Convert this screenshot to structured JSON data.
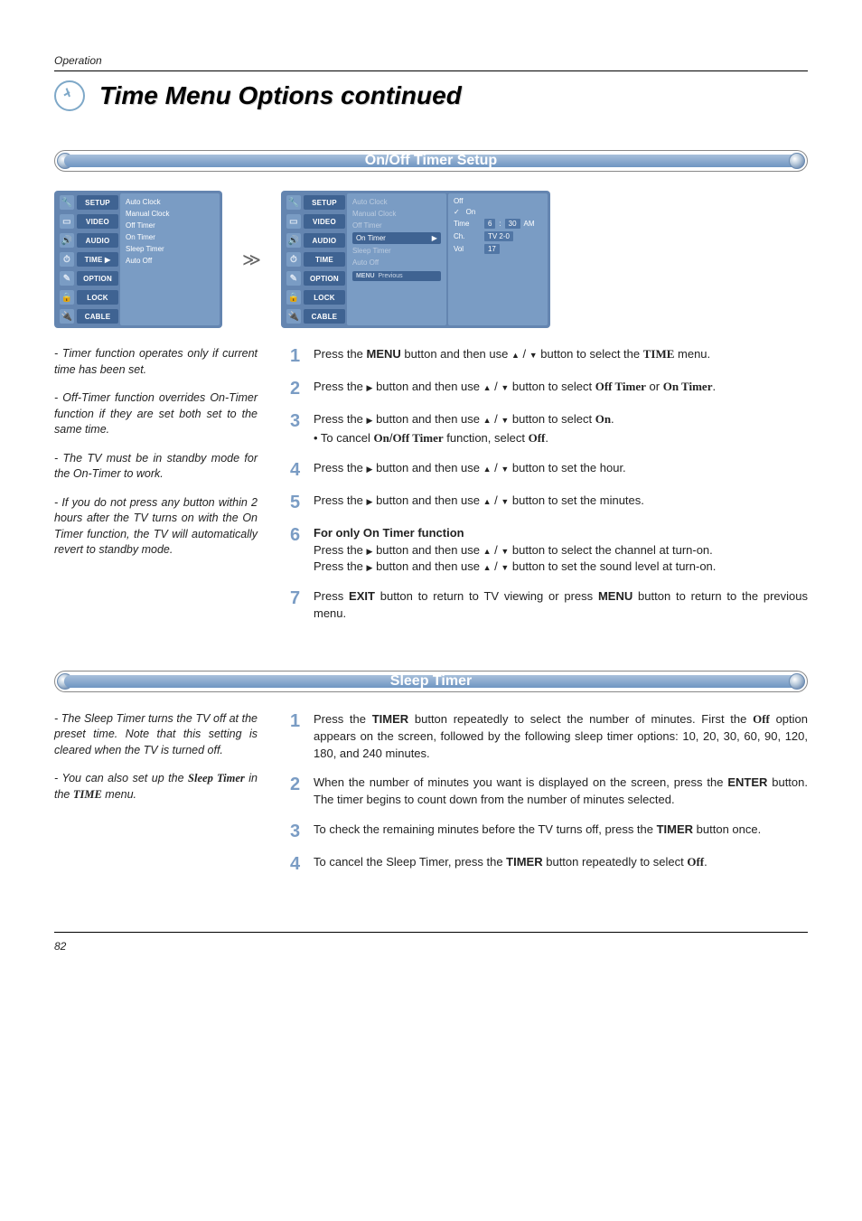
{
  "header": {
    "operation": "Operation",
    "page_number": "82"
  },
  "title": "Time Menu Options continued",
  "colors": {
    "accent_blue": "#7a9cc4",
    "dark_blue": "#3f6392",
    "banner_light": "#a8c0db",
    "banner_dark": "#6f95c2",
    "text": "#222222"
  },
  "section1": {
    "banner": "On/Off Timer Setup",
    "menu_left": {
      "sidebar": [
        {
          "label": "SETUP",
          "icon": "🔧"
        },
        {
          "label": "VIDEO",
          "icon": "▭"
        },
        {
          "label": "AUDIO",
          "icon": "🔊"
        },
        {
          "label": "TIME ▶",
          "icon": "⏱",
          "active": true
        },
        {
          "label": "OPTION",
          "icon": "✎"
        },
        {
          "label": "LOCK",
          "icon": "🔒"
        },
        {
          "label": "CABLE",
          "icon": "🔌"
        }
      ],
      "panel": [
        "Auto Clock",
        "Manual Clock",
        "Off Timer",
        "On Timer",
        "Sleep Timer",
        "Auto Off"
      ]
    },
    "menu_right": {
      "sidebar": [
        {
          "label": "SETUP",
          "icon": "🔧"
        },
        {
          "label": "VIDEO",
          "icon": "▭"
        },
        {
          "label": "AUDIO",
          "icon": "🔊"
        },
        {
          "label": "TIME",
          "icon": "⏱"
        },
        {
          "label": "OPTION",
          "icon": "✎"
        },
        {
          "label": "LOCK",
          "icon": "🔒"
        },
        {
          "label": "CABLE",
          "icon": "🔌"
        }
      ],
      "panel_top": [
        "Auto Clock",
        "Manual Clock",
        "Off Timer"
      ],
      "highlight": "On Timer",
      "panel_rest": [
        "Sleep Timer",
        "Auto Off"
      ],
      "hint1": "MENU",
      "hint2": "Previous",
      "sub": {
        "off": "Off",
        "on": "On",
        "rows": [
          {
            "k": "Time",
            "v1": "6",
            "sep": ":",
            "v2": "30",
            "suffix": "AM"
          },
          {
            "k": "Ch.",
            "v1": "TV  2-0"
          },
          {
            "k": "Vol",
            "v1": "17"
          }
        ]
      }
    },
    "notes": [
      "Timer function operates only if current time has been set.",
      "Off-Timer function overrides On-Timer function if they are set both set to the same time.",
      "The TV must be in standby mode for the On-Timer to work.",
      "If you do not press any button within 2 hours after the TV turns on with the On Timer function, the TV will automatically revert to standby mode."
    ],
    "steps": {
      "s1a": "Press the ",
      "s1b": "MENU",
      "s1c": " button and then use ",
      "s1d": " button to select the ",
      "s1e": "TIME",
      "s1f": " menu.",
      "s2a": "Press the ",
      "s2b": " button and then use ",
      "s2c": " button to select ",
      "s2d": "Off Timer",
      "s2e": " or ",
      "s2f": "On Timer",
      "s2g": ".",
      "s3a": "Press the ",
      "s3b": " button and then use ",
      "s3c": " button to select ",
      "s3d": "On",
      "s3e": ".",
      "s3sub_a": "• To cancel ",
      "s3sub_b": "On",
      "s3sub_c": "/",
      "s3sub_d": "Off Timer",
      "s3sub_e": " function, select ",
      "s3sub_f": "Off",
      "s3sub_g": ".",
      "s4a": "Press the ",
      "s4b": " button and then use ",
      "s4c": " button to set the hour.",
      "s5a": "Press the ",
      "s5b": " button and then use ",
      "s5c": " button to set the minutes.",
      "s6h_a": "For only ",
      "s6h_b": "On Timer",
      "s6h_c": " function",
      "s6a": "Press the ",
      "s6b": " button and then use ",
      "s6c": " button to select the channel at turn-on.",
      "s6d": "Press the ",
      "s6e": " button and then use ",
      "s6f": " button to set the sound level at turn-on.",
      "s7a": "Press ",
      "s7b": "EXIT",
      "s7c": " button to return to TV viewing or press ",
      "s7d": "MENU",
      "s7e": " button to return to the previous menu."
    }
  },
  "section2": {
    "banner": "Sleep Timer",
    "notes_a": "The Sleep Timer turns the TV off at the preset time. Note that this setting is cleared when the TV is turned off.",
    "notes_b1": "You can also set up the ",
    "notes_b2": "Sleep Timer",
    "notes_b3": " in the ",
    "notes_b4": "TIME",
    "notes_b5": " menu.",
    "steps": {
      "s1a": "Press the ",
      "s1b": "TIMER",
      "s1c": " button repeatedly to select the number of minutes. First the ",
      "s1d": "Off",
      "s1e": " option appears on the screen, followed by the following sleep timer options: 10, 20, 30, 60, 90, 120, 180, and 240 minutes.",
      "s2a": "When the number of minutes you want is displayed on the screen, press the ",
      "s2b": "ENTER",
      "s2c": " button. The timer begins to count down from the number of minutes selected.",
      "s3a": "To check the remaining minutes before the TV turns off, press the ",
      "s3b": "TIMER",
      "s3c": " button once.",
      "s4a": "To cancel the Sleep Timer, press the ",
      "s4b": "TIMER",
      "s4c": " button repeatedly to select ",
      "s4d": "Off",
      "s4e": "."
    }
  }
}
